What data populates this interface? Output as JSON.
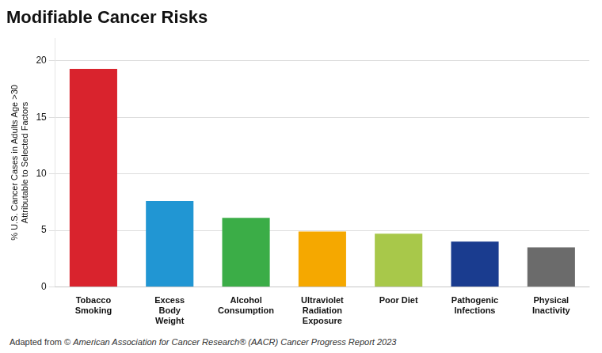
{
  "chart_data": {
    "type": "bar",
    "title": "Modifiable Cancer Risks",
    "ylabel": "% U.S. Cancer Cases in Adults Age >30\nAttributable to Selected Factors",
    "categories": [
      "Tobacco\nSmoking",
      "Excess\nBody\nWeight",
      "Alcohol\nConsumption",
      "Ultraviolet\nRadiation\nExposure",
      "Poor Diet",
      "Pathogenic\nInfections",
      "Physical\nInactivity"
    ],
    "values": [
      19.3,
      7.6,
      6.1,
      4.9,
      4.7,
      4.0,
      3.5
    ],
    "colors": [
      "#D9232D",
      "#2196D3",
      "#3BAD47",
      "#F5A800",
      "#A8C84A",
      "#1A3C8F",
      "#6B6B6B"
    ],
    "ylim": [
      0,
      22
    ],
    "yticks": [
      0,
      5,
      10,
      15,
      20
    ],
    "grid": true,
    "footer": [
      "Adapted from ©",
      "American Association for Cancer Research® (AACR) Cancer Progress Report 2023"
    ]
  }
}
